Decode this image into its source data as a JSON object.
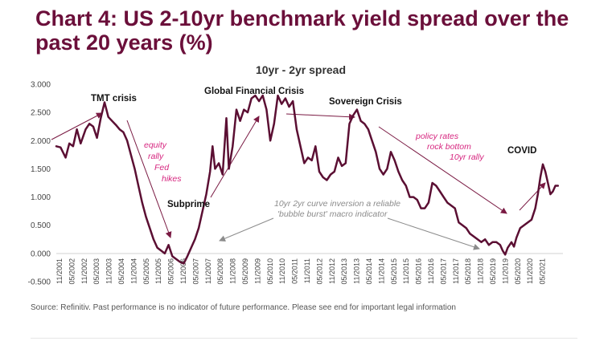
{
  "page": {
    "title": "Chart 4: US 2-10yr benchmark yield spread over the past 20 years (%)",
    "source": "Source: Refinitiv. Past performance is no indicator of future performance. Please see end for important legal information"
  },
  "colors": {
    "title": "#6b0f3a",
    "line": "#5b0f33",
    "arrow": "#7a1a43",
    "magenta_text": "#d6267f",
    "grey_text": "#8c8c8c",
    "grey_arrow": "#8c8c8c",
    "axis_text": "#444444",
    "green_arrow": "#8fb53a"
  },
  "chart_data": {
    "type": "line",
    "title": "10yr - 2yr spread",
    "ylim": [
      -0.5,
      3.0
    ],
    "y_ticks": [
      3.0,
      2.5,
      2.0,
      1.5,
      1.0,
      0.5,
      0.0,
      -0.5
    ],
    "y_tick_labels": [
      "3.000",
      "2.500",
      "2.000",
      "1.500",
      "1.000",
      "0.500",
      "0.000",
      "-0.500"
    ],
    "x_range": [
      2001.83,
      2022.0
    ],
    "x_tick_labels": [
      "11/2001",
      "05/2002",
      "11/2002",
      "05/2003",
      "11/2003",
      "05/2004",
      "11/2004",
      "05/2005",
      "11/2005",
      "05/2006",
      "11/2006",
      "05/2007",
      "11/2007",
      "05/2008",
      "11/2008",
      "05/2009",
      "11/2009",
      "05/2010",
      "11/2010",
      "05/2011",
      "11/2011",
      "05/2012",
      "11/2012",
      "05/2013",
      "11/2013",
      "05/2014",
      "11/2014",
      "05/2015",
      "11/2015",
      "05/2016",
      "11/2016",
      "05/2017",
      "11/2017",
      "05/2018",
      "11/2018",
      "05/2019",
      "11/2019",
      "05/2020",
      "11/2020",
      "05/2021"
    ],
    "grid": false,
    "legend": "none",
    "series": [
      {
        "name": "10yr - 2yr spread",
        "points": [
          [
            2001.83,
            1.9
          ],
          [
            2002.0,
            1.88
          ],
          [
            2002.2,
            1.7
          ],
          [
            2002.35,
            1.95
          ],
          [
            2002.5,
            1.9
          ],
          [
            2002.65,
            2.2
          ],
          [
            2002.8,
            1.95
          ],
          [
            2003.0,
            2.2
          ],
          [
            2003.15,
            2.3
          ],
          [
            2003.3,
            2.25
          ],
          [
            2003.45,
            2.05
          ],
          [
            2003.6,
            2.4
          ],
          [
            2003.75,
            2.68
          ],
          [
            2003.9,
            2.42
          ],
          [
            2004.05,
            2.35
          ],
          [
            2004.2,
            2.28
          ],
          [
            2004.35,
            2.2
          ],
          [
            2004.5,
            2.15
          ],
          [
            2004.65,
            2.0
          ],
          [
            2004.8,
            1.75
          ],
          [
            2004.95,
            1.5
          ],
          [
            2005.1,
            1.2
          ],
          [
            2005.25,
            0.9
          ],
          [
            2005.4,
            0.65
          ],
          [
            2005.55,
            0.45
          ],
          [
            2005.7,
            0.25
          ],
          [
            2005.85,
            0.1
          ],
          [
            2006.0,
            0.05
          ],
          [
            2006.15,
            0.0
          ],
          [
            2006.3,
            0.15
          ],
          [
            2006.45,
            -0.05
          ],
          [
            2006.6,
            -0.1
          ],
          [
            2006.75,
            -0.15
          ],
          [
            2006.9,
            -0.18
          ],
          [
            2007.05,
            -0.05
          ],
          [
            2007.2,
            0.1
          ],
          [
            2007.35,
            0.25
          ],
          [
            2007.5,
            0.45
          ],
          [
            2007.65,
            0.75
          ],
          [
            2007.8,
            1.05
          ],
          [
            2007.95,
            1.45
          ],
          [
            2008.05,
            1.9
          ],
          [
            2008.15,
            1.5
          ],
          [
            2008.3,
            1.6
          ],
          [
            2008.45,
            1.4
          ],
          [
            2008.6,
            2.4
          ],
          [
            2008.7,
            1.5
          ],
          [
            2008.85,
            1.9
          ],
          [
            2009.0,
            2.55
          ],
          [
            2009.15,
            2.35
          ],
          [
            2009.3,
            2.55
          ],
          [
            2009.45,
            2.5
          ],
          [
            2009.6,
            2.75
          ],
          [
            2009.75,
            2.8
          ],
          [
            2009.9,
            2.7
          ],
          [
            2010.05,
            2.8
          ],
          [
            2010.2,
            2.55
          ],
          [
            2010.35,
            2.0
          ],
          [
            2010.5,
            2.3
          ],
          [
            2010.65,
            2.8
          ],
          [
            2010.8,
            2.65
          ],
          [
            2010.95,
            2.75
          ],
          [
            2011.1,
            2.6
          ],
          [
            2011.25,
            2.7
          ],
          [
            2011.4,
            2.2
          ],
          [
            2011.55,
            1.9
          ],
          [
            2011.7,
            1.6
          ],
          [
            2011.85,
            1.7
          ],
          [
            2012.0,
            1.65
          ],
          [
            2012.15,
            1.9
          ],
          [
            2012.3,
            1.45
          ],
          [
            2012.45,
            1.35
          ],
          [
            2012.6,
            1.3
          ],
          [
            2012.75,
            1.4
          ],
          [
            2012.9,
            1.45
          ],
          [
            2013.05,
            1.7
          ],
          [
            2013.2,
            1.55
          ],
          [
            2013.35,
            1.6
          ],
          [
            2013.5,
            2.3
          ],
          [
            2013.65,
            2.45
          ],
          [
            2013.8,
            2.55
          ],
          [
            2013.95,
            2.35
          ],
          [
            2014.1,
            2.3
          ],
          [
            2014.25,
            2.2
          ],
          [
            2014.4,
            2.0
          ],
          [
            2014.55,
            1.8
          ],
          [
            2014.7,
            1.5
          ],
          [
            2014.85,
            1.4
          ],
          [
            2015.0,
            1.5
          ],
          [
            2015.15,
            1.8
          ],
          [
            2015.3,
            1.65
          ],
          [
            2015.45,
            1.45
          ],
          [
            2015.6,
            1.3
          ],
          [
            2015.75,
            1.2
          ],
          [
            2015.9,
            1.0
          ],
          [
            2016.05,
            1.0
          ],
          [
            2016.2,
            0.95
          ],
          [
            2016.35,
            0.8
          ],
          [
            2016.5,
            0.8
          ],
          [
            2016.65,
            0.9
          ],
          [
            2016.8,
            1.25
          ],
          [
            2016.95,
            1.2
          ],
          [
            2017.1,
            1.1
          ],
          [
            2017.25,
            1.0
          ],
          [
            2017.4,
            0.9
          ],
          [
            2017.55,
            0.85
          ],
          [
            2017.7,
            0.8
          ],
          [
            2017.85,
            0.55
          ],
          [
            2018.0,
            0.5
          ],
          [
            2018.15,
            0.45
          ],
          [
            2018.3,
            0.35
          ],
          [
            2018.45,
            0.3
          ],
          [
            2018.6,
            0.25
          ],
          [
            2018.75,
            0.2
          ],
          [
            2018.9,
            0.25
          ],
          [
            2019.05,
            0.15
          ],
          [
            2019.2,
            0.2
          ],
          [
            2019.35,
            0.2
          ],
          [
            2019.5,
            0.15
          ],
          [
            2019.6,
            0.05
          ],
          [
            2019.7,
            -0.02
          ],
          [
            2019.8,
            0.1
          ],
          [
            2019.95,
            0.2
          ],
          [
            2020.05,
            0.12
          ],
          [
            2020.15,
            0.28
          ],
          [
            2020.3,
            0.45
          ],
          [
            2020.45,
            0.5
          ],
          [
            2020.6,
            0.55
          ],
          [
            2020.75,
            0.6
          ],
          [
            2020.9,
            0.8
          ],
          [
            2021.0,
            1.05
          ],
          [
            2021.1,
            1.35
          ],
          [
            2021.2,
            1.58
          ],
          [
            2021.3,
            1.45
          ],
          [
            2021.4,
            1.25
          ],
          [
            2021.5,
            1.05
          ],
          [
            2021.6,
            1.1
          ],
          [
            2021.7,
            1.2
          ],
          [
            2021.8,
            1.2
          ]
        ]
      }
    ],
    "annotations": {
      "tmt": "TMT crisis",
      "gfc": "Global Financial Crisis",
      "sovereign": "Sovereign Crisis",
      "subprime": "Subprime",
      "covid": "COVID",
      "equity_lines": [
        "equity",
        "rally",
        "Fed",
        "hikes"
      ],
      "policy_lines": [
        "policy rates",
        "rock bottom",
        "10yr rally"
      ],
      "inversion_lines": [
        "10yr 2yr curve inversion a reliable",
        "'bubble burst' macro indicator"
      ]
    }
  }
}
